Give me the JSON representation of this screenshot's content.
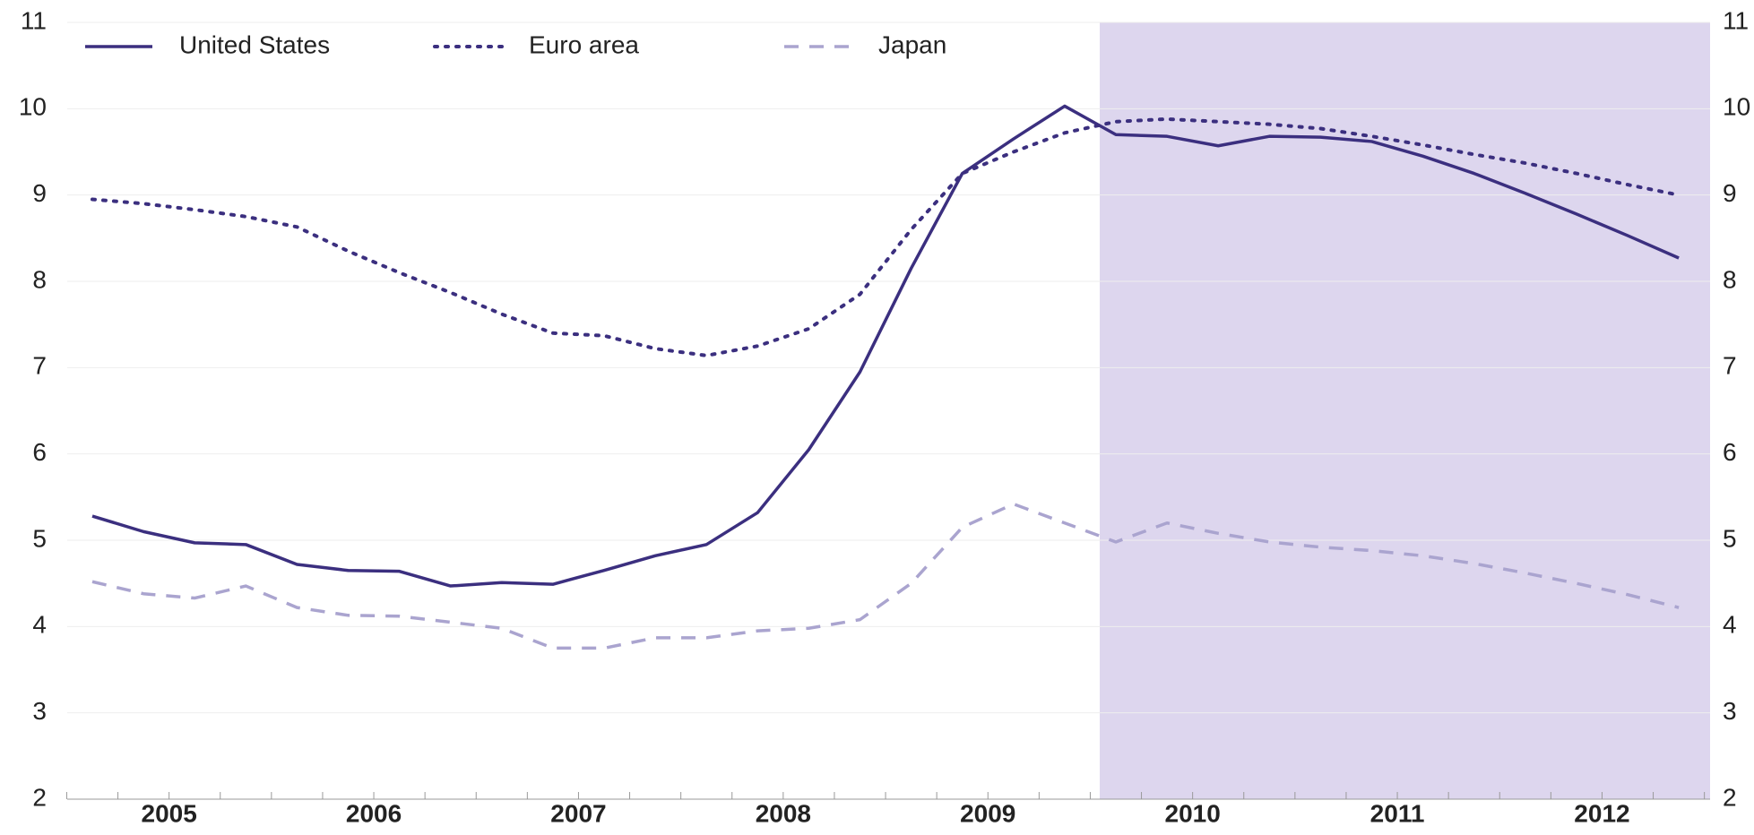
{
  "chart_data": {
    "type": "line",
    "categories": [
      null,
      "2005",
      null,
      null,
      null,
      "2006",
      null,
      null,
      null,
      "2007",
      null,
      null,
      null,
      "2008",
      null,
      null,
      null,
      "2009",
      null,
      null,
      null,
      "2010",
      null,
      null,
      null,
      "2011",
      null,
      null,
      null,
      "2012",
      null,
      null
    ],
    "series": [
      {
        "name": "United States",
        "color": "#3b2f7f",
        "style": "solid",
        "values": [
          5.28,
          5.1,
          4.97,
          4.95,
          4.72,
          4.65,
          4.64,
          4.47,
          4.51,
          4.49,
          4.65,
          4.82,
          4.95,
          5.32,
          6.05,
          6.95,
          8.15,
          9.25,
          9.65,
          10.03,
          9.7,
          9.68,
          9.57,
          9.68,
          9.67,
          9.62,
          9.45,
          9.25,
          9.02,
          8.78,
          8.53,
          8.27
        ]
      },
      {
        "name": "Euro area",
        "color": "#3b2f7f",
        "style": "dotted",
        "values": [
          8.95,
          8.9,
          8.83,
          8.75,
          8.63,
          8.35,
          8.1,
          7.87,
          7.62,
          7.4,
          7.37,
          7.22,
          7.14,
          7.25,
          7.45,
          7.85,
          8.6,
          9.25,
          9.5,
          9.72,
          9.85,
          9.88,
          9.85,
          9.82,
          9.77,
          9.68,
          9.58,
          9.47,
          9.37,
          9.25,
          9.12,
          9.0
        ]
      },
      {
        "name": "Japan",
        "color": "#aaa4cf",
        "style": "dashed",
        "values": [
          4.52,
          4.38,
          4.33,
          4.47,
          4.22,
          4.13,
          4.12,
          4.05,
          3.98,
          3.75,
          3.75,
          3.87,
          3.87,
          3.95,
          3.98,
          4.08,
          4.5,
          5.15,
          5.42,
          5.2,
          4.98,
          5.2,
          5.08,
          4.98,
          4.92,
          4.88,
          4.82,
          4.73,
          4.62,
          4.5,
          4.37,
          4.22
        ]
      }
    ],
    "ylim": [
      2,
      11
    ],
    "yticks": [
      2,
      3,
      4,
      5,
      6,
      7,
      8,
      9,
      10,
      11
    ],
    "y2lim": [
      2,
      11
    ],
    "y2ticks": [
      2,
      3,
      4,
      5,
      6,
      7,
      8,
      9,
      10,
      11
    ],
    "grid": true,
    "legend": "top-left"
  }
}
